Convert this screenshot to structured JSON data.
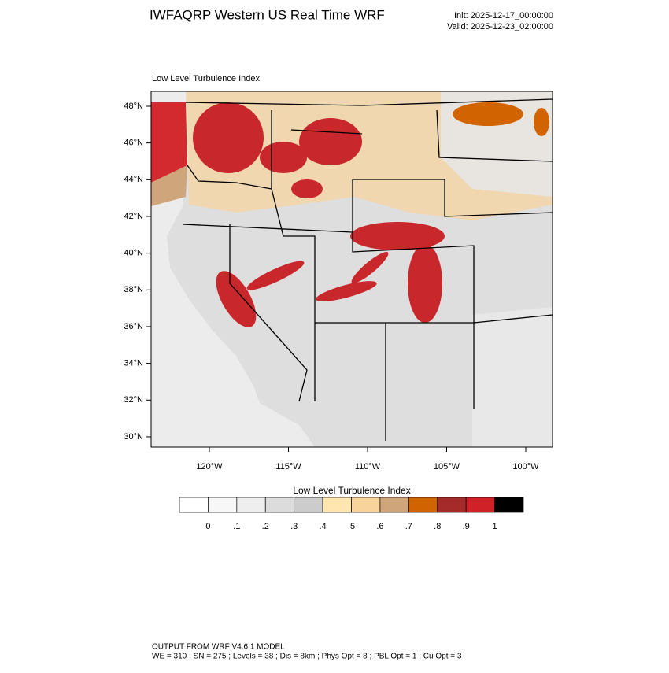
{
  "header": {
    "title": "IWFAQRP Western US Real Time WRF",
    "init": "Init: 2025-12-17_00:00:00",
    "valid": "Valid: 2025-12-23_02:00:00"
  },
  "panel": {
    "title": "Low Level Turbulence Index",
    "lat_ticks": [
      {
        "value": 48,
        "label": "48°N"
      },
      {
        "value": 46,
        "label": "46°N"
      },
      {
        "value": 44,
        "label": "44°N"
      },
      {
        "value": 42,
        "label": "42°N"
      },
      {
        "value": 40,
        "label": "40°N"
      },
      {
        "value": 38,
        "label": "38°N"
      },
      {
        "value": 36,
        "label": "36°N"
      },
      {
        "value": 34,
        "label": "34°N"
      },
      {
        "value": 32,
        "label": "32°N"
      },
      {
        "value": 30,
        "label": "30°N"
      }
    ],
    "lon_ticks": [
      {
        "value": -120,
        "label": "120°W"
      },
      {
        "value": -115,
        "label": "115°W"
      },
      {
        "value": -110,
        "label": "110°W"
      },
      {
        "value": -105,
        "label": "105°W"
      },
      {
        "value": -100,
        "label": "100°W"
      }
    ]
  },
  "colorbar": {
    "title": "Low Level Turbulence Index",
    "colors": [
      "#ffffff",
      "#f7f7f7",
      "#eeeeee",
      "#dcdcdc",
      "#cccccc",
      "#ffe6b0",
      "#f8d49c",
      "#cfa57c",
      "#d26400",
      "#a52a2a",
      "#d02028",
      "#000000"
    ],
    "labels": [
      "0",
      ".1",
      ".2",
      ".3",
      ".4",
      ".5",
      ".6",
      ".7",
      ".8",
      ".9",
      "1"
    ]
  },
  "footer": {
    "line1": "OUTPUT FROM WRF V4.6.1 MODEL",
    "line2": "WE = 310 ; SN = 275 ; Levels = 38 ; Dis = 8km ; Phys Opt = 8 ; PBL Opt = 1 ; Cu Opt = 3"
  }
}
